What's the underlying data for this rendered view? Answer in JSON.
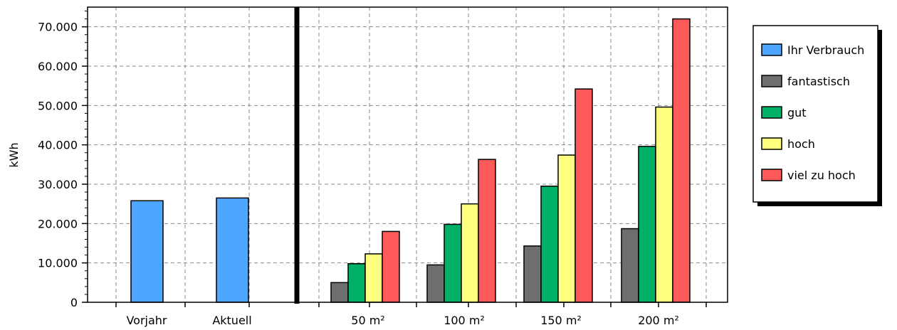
{
  "chart_data": {
    "type": "bar",
    "ylabel": "kWh",
    "ylim": [
      0,
      75000
    ],
    "grid": true,
    "legend_position": "right",
    "y_ticks": [
      {
        "value": 0,
        "label": "0"
      },
      {
        "value": 10000,
        "label": "10.000"
      },
      {
        "value": 20000,
        "label": "20.000"
      },
      {
        "value": 30000,
        "label": "30.000"
      },
      {
        "value": 40000,
        "label": "40.000"
      },
      {
        "value": 50000,
        "label": "50.000"
      },
      {
        "value": 60000,
        "label": "60.000"
      },
      {
        "value": 70000,
        "label": "70.000"
      }
    ],
    "categories": [
      "Vorjahr",
      "Aktuell",
      "50 m²",
      "100 m²",
      "150 m²",
      "200 m²"
    ],
    "series": [
      {
        "name": "Ihr Verbrauch",
        "color": "#4da6ff",
        "values": [
          25800,
          26500,
          null,
          null,
          null,
          null
        ]
      },
      {
        "name": "fantastisch",
        "color": "#6e6e6e",
        "values": [
          null,
          null,
          5000,
          9500,
          14300,
          18700
        ]
      },
      {
        "name": "gut",
        "color": "#00b066",
        "values": [
          null,
          null,
          9800,
          19800,
          29500,
          39600
        ]
      },
      {
        "name": "hoch",
        "color": "#ffff80",
        "values": [
          null,
          null,
          12300,
          25000,
          37400,
          49600
        ]
      },
      {
        "name": "viel zu hoch",
        "color": "#ff5a5a",
        "values": [
          null,
          null,
          18000,
          36300,
          54200,
          72000
        ]
      }
    ]
  }
}
